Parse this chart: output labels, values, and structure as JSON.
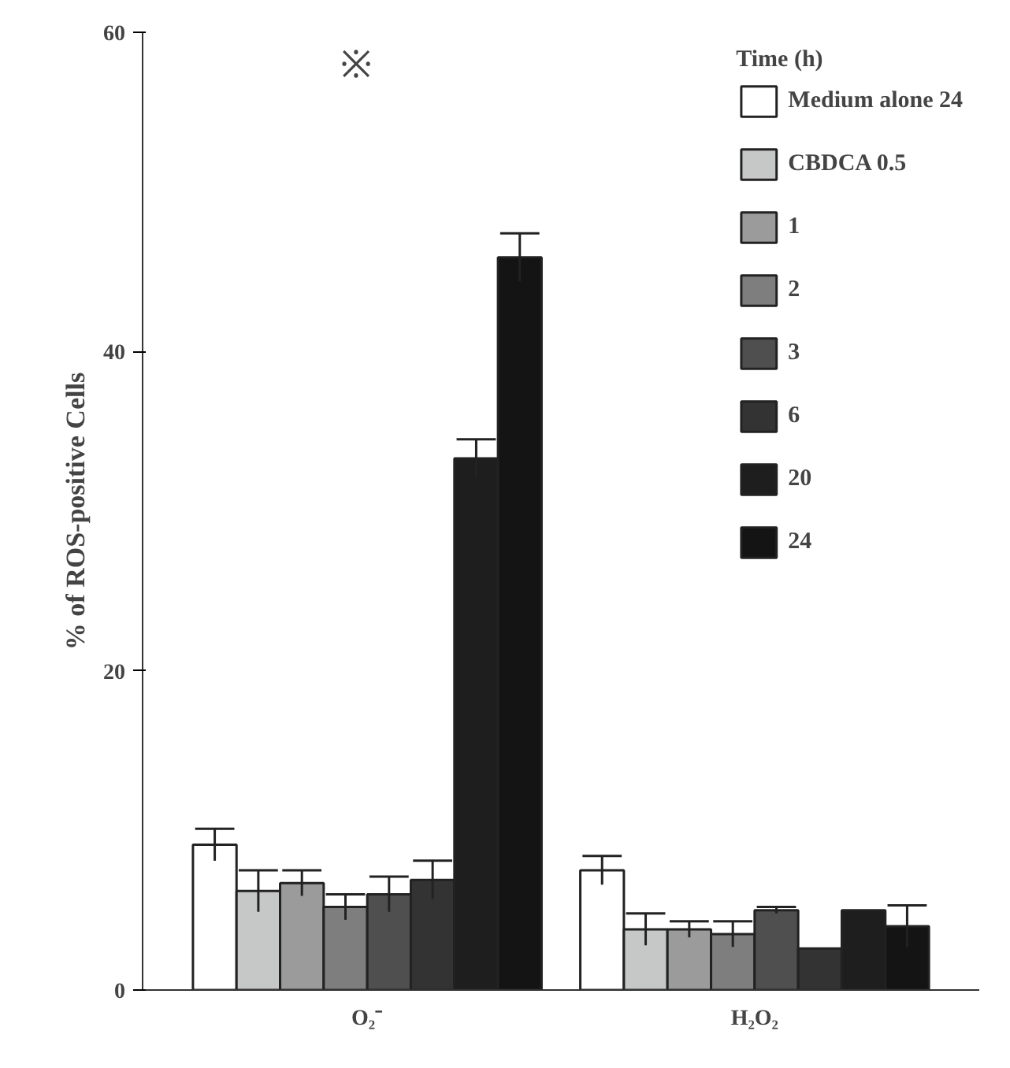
{
  "chart_data": {
    "type": "bar",
    "ylabel": "% of ROS-positive Cells",
    "legend_title": "Time (h)",
    "categories": [
      "O₂⁻",
      "H₂O₂"
    ],
    "series": [
      {
        "name": "Medium alone 24",
        "color": "#ffffff",
        "values": [
          9.1,
          7.5
        ],
        "errors": [
          1.0,
          0.9
        ]
      },
      {
        "name": "CBDCA 0.5",
        "color": "#c6c8c7",
        "values": [
          6.2,
          3.8
        ],
        "errors": [
          1.3,
          1.0
        ]
      },
      {
        "name": "1",
        "color": "#9b9b9b",
        "values": [
          6.7,
          3.8
        ],
        "errors": [
          0.8,
          0.5
        ]
      },
      {
        "name": "2",
        "color": "#7e7e7e",
        "values": [
          5.2,
          3.5
        ],
        "errors": [
          0.8,
          0.8
        ]
      },
      {
        "name": "3",
        "color": "#4f4f4f",
        "values": [
          6.0,
          5.0
        ],
        "errors": [
          1.1,
          0.2
        ]
      },
      {
        "name": "6",
        "color": "#333333",
        "values": [
          6.9,
          2.6
        ],
        "errors": [
          1.2,
          null
        ]
      },
      {
        "name": "20",
        "color": "#1e1e1e",
        "values": [
          33.3,
          5.0
        ],
        "errors": [
          1.2,
          null
        ]
      },
      {
        "name": "24",
        "color": "#141414",
        "values": [
          45.9,
          4.0
        ],
        "errors": [
          1.5,
          1.3
        ]
      }
    ],
    "ylim": [
      0,
      60
    ],
    "yticks": [
      0,
      20,
      40,
      60
    ],
    "grid": false,
    "legend": "top right",
    "annotations": [
      "※"
    ]
  }
}
